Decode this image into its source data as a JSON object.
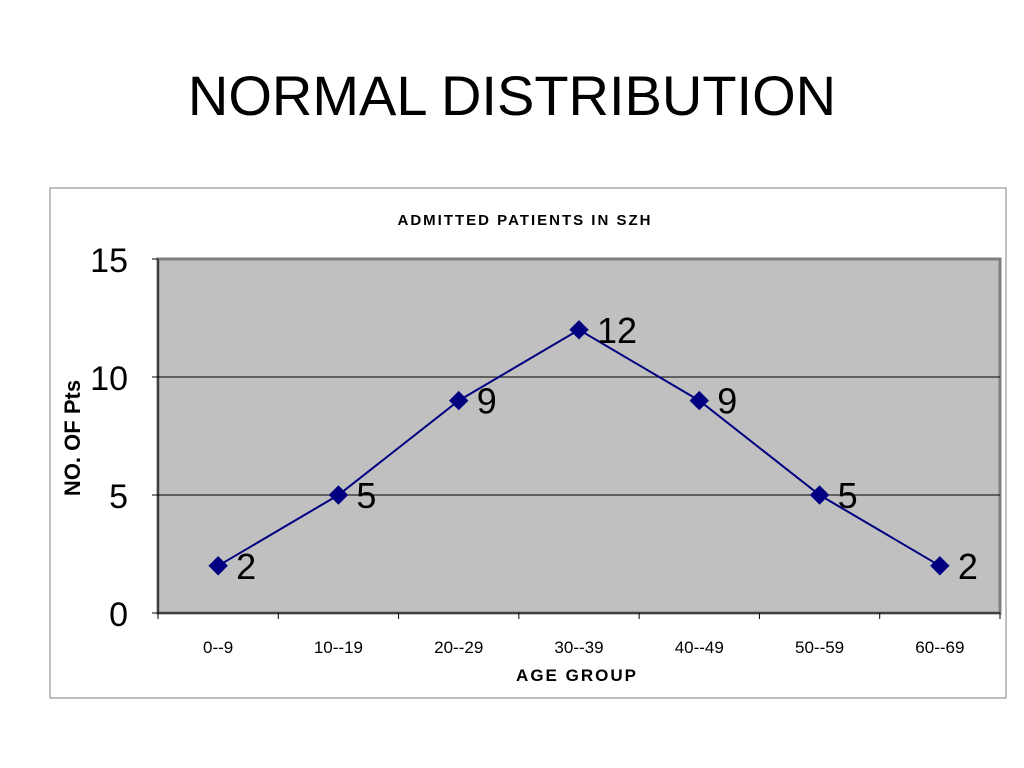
{
  "slide": {
    "title": "NORMAL DISTRIBUTION"
  },
  "chart_data": {
    "type": "line",
    "title": "ADMITTED PATIENTS IN SZH",
    "xlabel": "AGE GROUP",
    "ylabel": "NO. OF Pts",
    "categories": [
      "0--9",
      "10--19",
      "20--29",
      "30--39",
      "40--49",
      "50--59",
      "60--69"
    ],
    "series": [
      {
        "values": [
          2,
          5,
          9,
          12,
          9,
          5,
          2
        ]
      }
    ],
    "ylim": [
      0,
      15
    ],
    "yticks": [
      0,
      5,
      10,
      15
    ],
    "grid": true,
    "legend": "none",
    "colors": {
      "line": "#000080",
      "plot_background": "#c0c0c0",
      "gridline": "#000000"
    }
  }
}
